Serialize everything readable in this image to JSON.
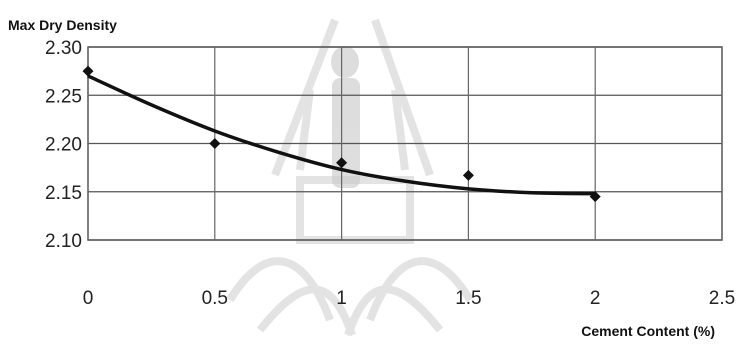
{
  "chart_data": {
    "type": "scatter",
    "title": "",
    "ylabel": "Max Dry Density",
    "xlabel": "Cement Content (%)",
    "xlim": [
      0,
      2.5
    ],
    "ylim": [
      2.1,
      2.3
    ],
    "xticks": [
      "0",
      "0.5",
      "1",
      "1.5",
      "2",
      "2.5"
    ],
    "yticks": [
      "2.30",
      "2.25",
      "2.20",
      "2.15",
      "2.10"
    ],
    "grid": true,
    "series": [
      {
        "x": [
          0,
          0.5,
          1,
          1.5,
          2
        ],
        "y": [
          2.275,
          2.2,
          2.18,
          2.167,
          2.145
        ],
        "marker": "diamond",
        "color": "#111111"
      }
    ],
    "trendline": {
      "type": "polynomial",
      "x": [
        0,
        0.25,
        0.5,
        0.75,
        1,
        1.25,
        1.5,
        1.75,
        2
      ],
      "y": [
        2.27,
        2.24,
        2.213,
        2.191,
        2.173,
        2.161,
        2.153,
        2.149,
        2.148
      ],
      "color": "#111111"
    }
  }
}
